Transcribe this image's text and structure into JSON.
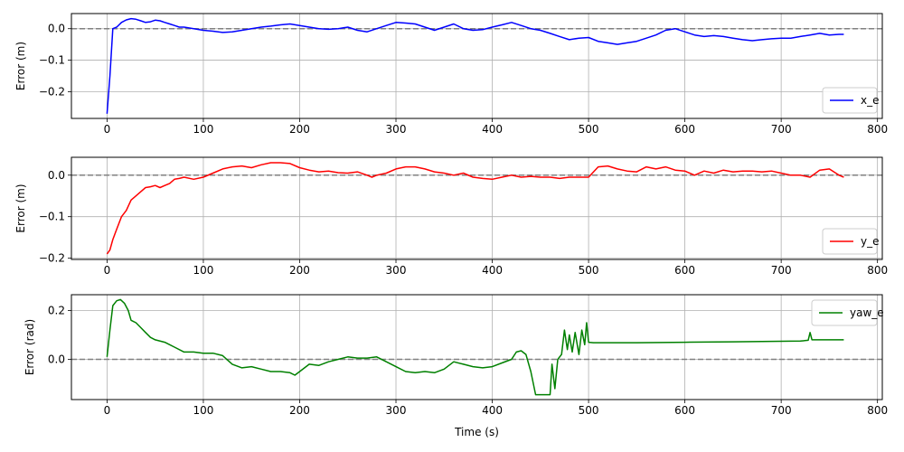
{
  "chart_data": [
    {
      "type": "line",
      "title": "",
      "xlabel": "",
      "ylabel": "Error (m)",
      "xlim": [
        -37,
        805
      ],
      "ylim": [
        -0.285,
        0.048
      ],
      "xticks": [
        0,
        100,
        200,
        300,
        400,
        500,
        600,
        700,
        800
      ],
      "yticks": [
        0.0,
        -0.1,
        -0.2
      ],
      "ytick_labels": [
        "0.0",
        "−0.1",
        "−0.2"
      ],
      "grid": true,
      "reference_line": {
        "y": 0,
        "style": "dashed",
        "color": "#808080"
      },
      "legend": {
        "position": "lower-right",
        "entries": [
          "x_e"
        ]
      },
      "series": [
        {
          "name": "x_e",
          "color": "#0000ff",
          "x": [
            0,
            3,
            6,
            10,
            15,
            20,
            25,
            30,
            35,
            40,
            45,
            50,
            55,
            60,
            65,
            70,
            75,
            80,
            90,
            100,
            110,
            120,
            130,
            140,
            150,
            160,
            170,
            180,
            190,
            200,
            210,
            220,
            230,
            240,
            250,
            260,
            270,
            280,
            290,
            300,
            310,
            320,
            330,
            340,
            350,
            360,
            370,
            380,
            390,
            400,
            410,
            420,
            430,
            440,
            450,
            460,
            470,
            480,
            490,
            500,
            510,
            520,
            530,
            540,
            550,
            560,
            570,
            580,
            590,
            600,
            610,
            620,
            630,
            640,
            650,
            660,
            670,
            680,
            690,
            700,
            710,
            720,
            730,
            740,
            750,
            760,
            765
          ],
          "y": [
            -0.27,
            -0.15,
            0.0,
            0.005,
            0.02,
            0.028,
            0.032,
            0.03,
            0.025,
            0.02,
            0.022,
            0.027,
            0.025,
            0.02,
            0.015,
            0.01,
            0.005,
            0.005,
            0.0,
            -0.005,
            -0.008,
            -0.012,
            -0.01,
            -0.005,
            0.0,
            0.005,
            0.008,
            0.012,
            0.015,
            0.01,
            0.005,
            0.0,
            -0.002,
            0.0,
            0.005,
            -0.005,
            -0.01,
            0.0,
            0.01,
            0.02,
            0.018,
            0.015,
            0.005,
            -0.005,
            0.005,
            0.015,
            0.0,
            -0.005,
            -0.003,
            0.005,
            0.012,
            0.02,
            0.01,
            0.0,
            -0.005,
            -0.015,
            -0.025,
            -0.035,
            -0.03,
            -0.028,
            -0.04,
            -0.045,
            -0.05,
            -0.045,
            -0.04,
            -0.03,
            -0.02,
            -0.005,
            0.0,
            -0.01,
            -0.02,
            -0.025,
            -0.022,
            -0.025,
            -0.03,
            -0.035,
            -0.038,
            -0.035,
            -0.032,
            -0.03,
            -0.03,
            -0.025,
            -0.02,
            -0.015,
            -0.02,
            -0.018,
            -0.018
          ]
        }
      ]
    },
    {
      "type": "line",
      "title": "",
      "xlabel": "",
      "ylabel": "Error (m)",
      "xlim": [
        -37,
        805
      ],
      "ylim": [
        -0.203,
        0.043
      ],
      "xticks": [
        0,
        100,
        200,
        300,
        400,
        500,
        600,
        700,
        800
      ],
      "yticks": [
        0.0,
        -0.1,
        -0.2
      ],
      "ytick_labels": [
        "0.0",
        "−0.1",
        "−0.2"
      ],
      "grid": true,
      "reference_line": {
        "y": 0,
        "style": "dashed",
        "color": "#808080"
      },
      "legend": {
        "position": "lower-right",
        "entries": [
          "y_e"
        ]
      },
      "series": [
        {
          "name": "y_e",
          "color": "#ff0000",
          "x": [
            0,
            3,
            6,
            10,
            15,
            20,
            25,
            30,
            35,
            40,
            45,
            50,
            55,
            60,
            65,
            70,
            75,
            80,
            90,
            100,
            110,
            120,
            130,
            140,
            150,
            160,
            170,
            180,
            190,
            200,
            210,
            220,
            230,
            240,
            250,
            260,
            270,
            275,
            280,
            290,
            300,
            310,
            320,
            330,
            340,
            350,
            360,
            370,
            380,
            390,
            400,
            410,
            420,
            430,
            440,
            450,
            460,
            470,
            480,
            490,
            500,
            510,
            520,
            530,
            540,
            550,
            560,
            570,
            580,
            590,
            600,
            610,
            620,
            630,
            640,
            650,
            660,
            670,
            680,
            690,
            700,
            710,
            720,
            730,
            740,
            750,
            760,
            765
          ],
          "y": [
            -0.19,
            -0.18,
            -0.155,
            -0.13,
            -0.1,
            -0.085,
            -0.06,
            -0.05,
            -0.04,
            -0.03,
            -0.028,
            -0.025,
            -0.03,
            -0.025,
            -0.02,
            -0.01,
            -0.008,
            -0.005,
            -0.01,
            -0.005,
            0.005,
            0.015,
            0.02,
            0.022,
            0.018,
            0.025,
            0.03,
            0.03,
            0.028,
            0.018,
            0.012,
            0.008,
            0.01,
            0.006,
            0.005,
            0.008,
            0.0,
            -0.005,
            0.0,
            0.005,
            0.015,
            0.02,
            0.02,
            0.015,
            0.008,
            0.005,
            0.0,
            0.005,
            -0.005,
            -0.008,
            -0.01,
            -0.005,
            0.0,
            -0.005,
            -0.003,
            -0.005,
            -0.005,
            -0.008,
            -0.005,
            -0.005,
            -0.005,
            0.02,
            0.022,
            0.015,
            0.01,
            0.008,
            0.02,
            0.015,
            0.02,
            0.012,
            0.01,
            0.0,
            0.01,
            0.005,
            0.012,
            0.008,
            0.01,
            0.01,
            0.008,
            0.01,
            0.005,
            0.0,
            0.0,
            -0.005,
            0.012,
            0.015,
            0.0,
            -0.005
          ]
        }
      ]
    },
    {
      "type": "line",
      "title": "",
      "xlabel": "Time (s)",
      "ylabel": "Error (rad)",
      "xlim": [
        -37,
        805
      ],
      "ylim": [
        -0.165,
        0.265
      ],
      "xticks": [
        0,
        100,
        200,
        300,
        400,
        500,
        600,
        700,
        800
      ],
      "yticks": [
        0.2,
        0.0
      ],
      "ytick_labels": [
        "0.2",
        "0.0"
      ],
      "grid": true,
      "reference_line": {
        "y": 0,
        "style": "dashed",
        "color": "#808080"
      },
      "legend": {
        "position": "top-right",
        "entries": [
          "yaw_e"
        ]
      },
      "series": [
        {
          "name": "yaw_e",
          "color": "#008000",
          "x": [
            0,
            3,
            6,
            10,
            14,
            18,
            22,
            25,
            30,
            35,
            40,
            45,
            50,
            60,
            70,
            80,
            90,
            100,
            110,
            120,
            130,
            140,
            150,
            160,
            170,
            180,
            190,
            195,
            200,
            210,
            220,
            230,
            240,
            250,
            260,
            270,
            280,
            290,
            300,
            310,
            320,
            330,
            340,
            350,
            360,
            370,
            380,
            390,
            400,
            410,
            420,
            425,
            430,
            435,
            440,
            445,
            450,
            460,
            462,
            465,
            468,
            472,
            475,
            478,
            480,
            483,
            486,
            490,
            493,
            496,
            498,
            500,
            505,
            510,
            550,
            600,
            650,
            700,
            720,
            728,
            730,
            732,
            740,
            765
          ],
          "y": [
            0.01,
            0.12,
            0.22,
            0.24,
            0.245,
            0.23,
            0.2,
            0.16,
            0.15,
            0.13,
            0.11,
            0.09,
            0.08,
            0.07,
            0.05,
            0.03,
            0.03,
            0.025,
            0.025,
            0.015,
            -0.02,
            -0.035,
            -0.03,
            -0.04,
            -0.05,
            -0.05,
            -0.055,
            -0.065,
            -0.05,
            -0.02,
            -0.025,
            -0.01,
            0.0,
            0.01,
            0.005,
            0.005,
            0.01,
            -0.01,
            -0.03,
            -0.05,
            -0.055,
            -0.05,
            -0.055,
            -0.04,
            -0.01,
            -0.02,
            -0.03,
            -0.035,
            -0.03,
            -0.015,
            0.0,
            0.03,
            0.035,
            0.02,
            -0.05,
            -0.145,
            -0.145,
            -0.145,
            -0.02,
            -0.12,
            0.0,
            0.02,
            0.12,
            0.04,
            0.1,
            0.03,
            0.11,
            0.02,
            0.12,
            0.06,
            0.15,
            0.07,
            0.068,
            0.068,
            0.068,
            0.07,
            0.072,
            0.074,
            0.075,
            0.078,
            0.11,
            0.08,
            0.08,
            0.08
          ]
        }
      ]
    }
  ]
}
